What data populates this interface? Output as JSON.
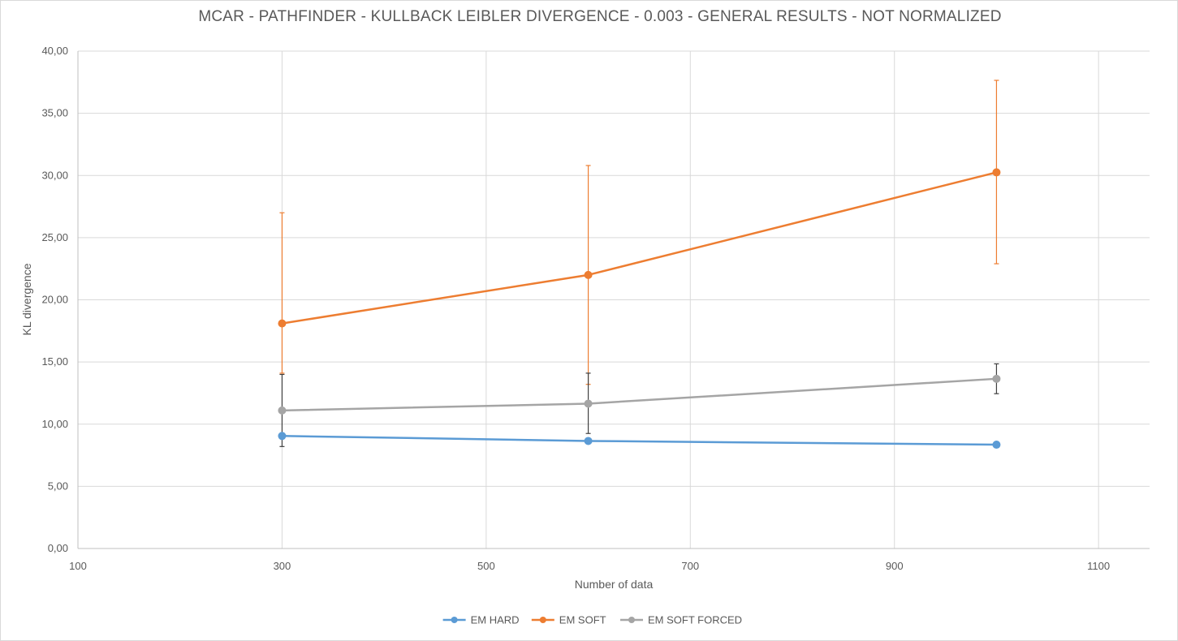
{
  "chart_data": {
    "type": "scatter",
    "title": "MCAR - PATHFINDER - KULLBACK LEIBLER DIVERGENCE - 0.003 - GENERAL RESULTS - NOT NORMALIZED",
    "xlabel": "Number of data",
    "ylabel": "KL divergence",
    "xlim": [
      100,
      1150
    ],
    "ylim": [
      0,
      40
    ],
    "x_ticks": [
      100,
      300,
      500,
      700,
      900,
      1100
    ],
    "x_tick_labels": [
      "100",
      "300",
      "500",
      "700",
      "900",
      "1100"
    ],
    "y_ticks": [
      0,
      5,
      10,
      15,
      20,
      25,
      30,
      35,
      40
    ],
    "y_tick_labels": [
      "0,00",
      "5,00",
      "10,00",
      "15,00",
      "20,00",
      "25,00",
      "30,00",
      "35,00",
      "40,00"
    ],
    "grid": true,
    "legend_position": "bottom",
    "series": [
      {
        "name": "EM HARD",
        "color": "#5b9bd5",
        "x": [
          300,
          600,
          1000
        ],
        "y": [
          9.05,
          8.65,
          8.35
        ],
        "error_low": [
          0,
          0,
          0
        ],
        "error_high": [
          0,
          0,
          0
        ],
        "error_color": "#5b9bd5"
      },
      {
        "name": "EM SOFT",
        "color": "#ed7d31",
        "x": [
          300,
          600,
          1000
        ],
        "y": [
          18.1,
          22.0,
          30.25
        ],
        "error_low": [
          4.0,
          8.8,
          7.35
        ],
        "error_high": [
          8.9,
          8.8,
          7.4
        ],
        "error_color": "#ed7d31"
      },
      {
        "name": "EM SOFT FORCED",
        "color": "#a5a5a5",
        "x": [
          300,
          600,
          1000
        ],
        "y": [
          11.1,
          11.65,
          13.65
        ],
        "error_low": [
          2.9,
          2.4,
          1.2
        ],
        "error_high": [
          2.9,
          2.45,
          1.2
        ],
        "error_color": "#404040"
      }
    ]
  }
}
